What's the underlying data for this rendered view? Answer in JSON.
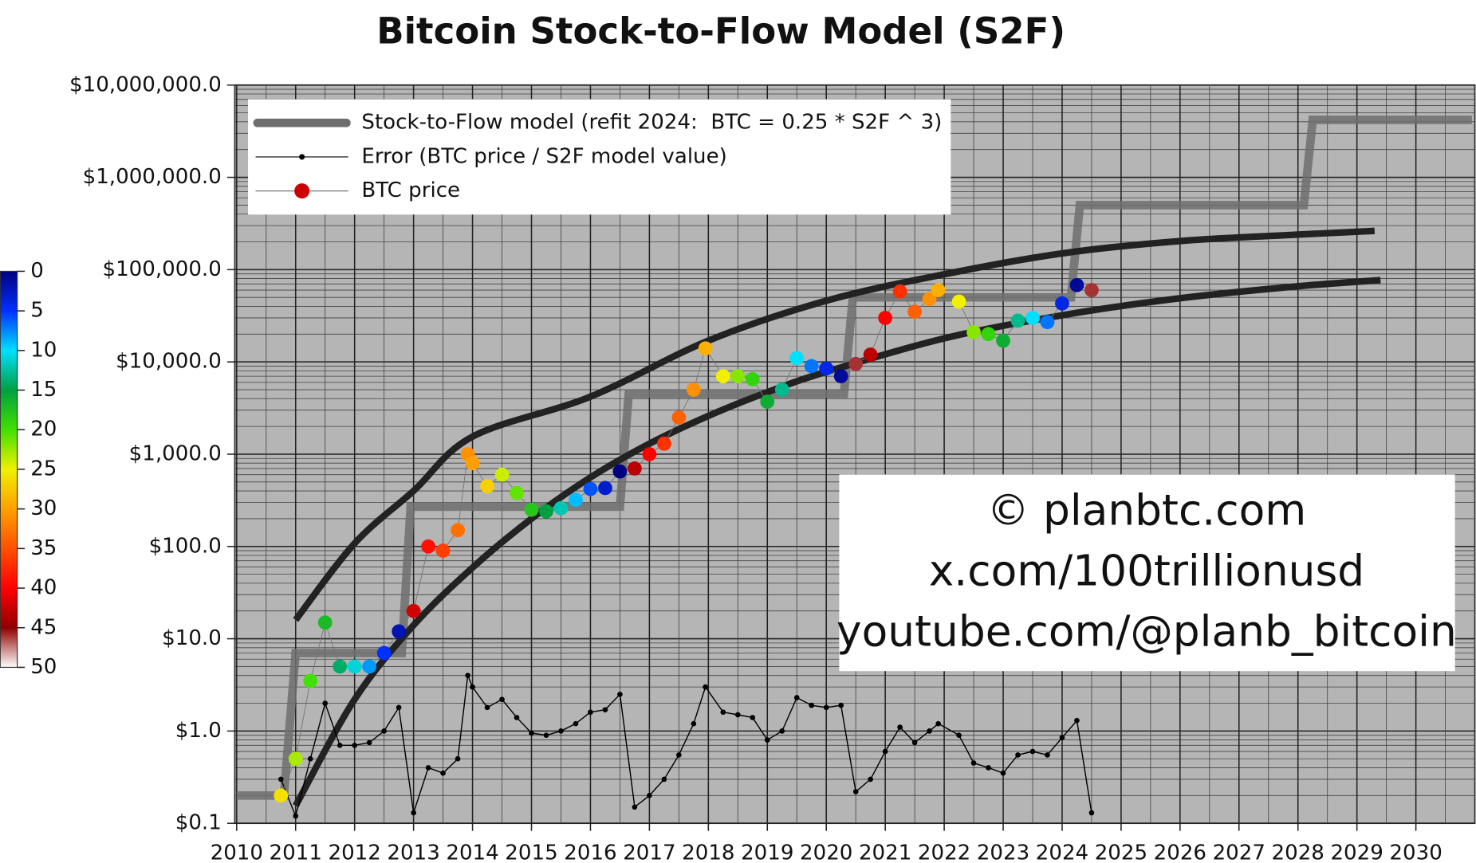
{
  "chart_data": {
    "type": "scatter",
    "title": "Bitcoin Stock-to-Flow Model (S2F)",
    "log_y": true,
    "grid": true,
    "legend": "upper left",
    "xlim": [
      2010,
      2031
    ],
    "xticks": [
      2010,
      2011,
      2012,
      2013,
      2014,
      2015,
      2016,
      2017,
      2018,
      2019,
      2020,
      2021,
      2022,
      2023,
      2024,
      2025,
      2026,
      2027,
      2028,
      2029,
      2030
    ],
    "ylim": [
      0.1,
      10000000
    ],
    "yticks": [
      {
        "value": 0.1,
        "label": "$0.1"
      },
      {
        "value": 1,
        "label": "$1.0"
      },
      {
        "value": 10,
        "label": "$10.0"
      },
      {
        "value": 100,
        "label": "$100.0"
      },
      {
        "value": 1000,
        "label": "$1,000.0"
      },
      {
        "value": 10000,
        "label": "$10,000.0"
      },
      {
        "value": 100000,
        "label": "$100,000.0"
      },
      {
        "value": 1000000,
        "label": "$1,000,000.0"
      },
      {
        "value": 10000000,
        "label": "$10,000,000.0"
      }
    ],
    "x": [
      2010.75,
      2011.0,
      2011.25,
      2011.5,
      2011.75,
      2012.0,
      2012.25,
      2012.5,
      2012.75,
      2013.0,
      2013.25,
      2013.5,
      2013.75,
      2013.92,
      2014.0,
      2014.25,
      2014.5,
      2014.75,
      2015.0,
      2015.25,
      2015.5,
      2015.75,
      2016.0,
      2016.25,
      2016.5,
      2016.75,
      2017.0,
      2017.25,
      2017.5,
      2017.75,
      2017.95,
      2018.25,
      2018.5,
      2018.75,
      2019.0,
      2019.25,
      2019.5,
      2019.75,
      2020.0,
      2020.25,
      2020.5,
      2020.75,
      2021.0,
      2021.25,
      2021.5,
      2021.75,
      2021.9,
      2022.25,
      2022.5,
      2022.75,
      2023.0,
      2023.25,
      2023.5,
      2023.75,
      2024.0,
      2024.25,
      2024.5
    ],
    "series": [
      {
        "name": "Stock-to-Flow model (refit 2024:  BTC = 0.25 * S2F ^ 3)",
        "color": "#6e6e6e",
        "x": [
          2010,
          2010.8,
          2011.0,
          2012.8,
          2012.95,
          2016.5,
          2016.65,
          2020.3,
          2020.45,
          2024.15,
          2024.3,
          2028.1,
          2028.25,
          2030.95
        ],
        "values": [
          0.2,
          0.2,
          7,
          7,
          270,
          270,
          4500,
          4500,
          50000,
          50000,
          500000,
          500000,
          4200000,
          4200000
        ]
      },
      {
        "name": "Error (BTC price / S2F model value)",
        "color": "#000000",
        "values": [
          0.3,
          0.12,
          0.5,
          2.0,
          0.7,
          0.7,
          0.75,
          1.0,
          1.8,
          0.13,
          0.4,
          0.35,
          0.5,
          4.0,
          3.0,
          1.8,
          2.2,
          1.4,
          0.95,
          0.9,
          1.0,
          1.2,
          1.6,
          1.7,
          2.5,
          0.15,
          0.2,
          0.3,
          0.55,
          1.2,
          3.0,
          1.6,
          1.5,
          1.4,
          0.8,
          1.0,
          2.3,
          1.9,
          1.8,
          1.9,
          0.22,
          0.3,
          0.6,
          1.1,
          0.75,
          1.0,
          1.2,
          0.9,
          0.45,
          0.4,
          0.35,
          0.55,
          0.6,
          0.55,
          0.85,
          1.3,
          0.13
        ]
      },
      {
        "name": "BTC price",
        "color": "#cc0000",
        "values": [
          0.2,
          0.5,
          3.5,
          15,
          5,
          5,
          5,
          7,
          12,
          20,
          100,
          90,
          150,
          1000,
          800,
          450,
          600,
          380,
          250,
          240,
          260,
          320,
          420,
          430,
          650,
          700,
          1000,
          1300,
          2500,
          5000,
          14000,
          7000,
          7000,
          6500,
          3700,
          5000,
          11000,
          9000,
          8500,
          7000,
          9500,
          12000,
          30000,
          58000,
          35000,
          48000,
          60000,
          45000,
          21000,
          20000,
          17000,
          28000,
          30000,
          27000,
          43000,
          68000,
          60000
        ],
        "color_values": [
          26,
          23,
          20,
          17,
          14,
          11,
          8,
          5,
          2,
          42,
          39,
          36,
          33,
          31,
          30,
          27,
          24,
          21,
          18,
          15,
          12,
          9,
          6,
          3,
          0,
          43,
          40,
          37,
          34,
          31,
          29,
          25,
          22,
          19,
          16,
          13,
          10,
          7,
          4,
          1,
          46,
          43,
          40,
          37,
          34,
          31,
          29,
          25,
          22,
          19,
          16,
          13,
          10,
          7,
          4,
          1,
          46
        ]
      }
    ],
    "bands": [
      {
        "color": "#222222",
        "x": [
          2011.0,
          2012,
          2013,
          2014,
          2016,
          2018,
          2020,
          2022,
          2024,
          2026,
          2028,
          2029.3
        ],
        "values": [
          16,
          108,
          400,
          1550,
          4200,
          17000,
          46000,
          89000,
          150000,
          204000,
          240000,
          263000
        ]
      },
      {
        "color": "#222222",
        "x": [
          2011.0,
          2012,
          2013,
          2014,
          2015,
          2016,
          2017,
          2018,
          2019,
          2020,
          2022,
          2024,
          2026,
          2028,
          2029.4
        ],
        "values": [
          0.155,
          2.2,
          14,
          59,
          200,
          560,
          1300,
          2600,
          4700,
          7800,
          18000,
          32000,
          49000,
          66000,
          77000
        ]
      }
    ],
    "colorbar": {
      "lim": [
        0,
        50
      ],
      "ticks": [
        0,
        5,
        10,
        15,
        20,
        25,
        30,
        35,
        40,
        45,
        50
      ],
      "colormap": [
        "#000080",
        "#0030ff",
        "#00e0ff",
        "#00a040",
        "#40e000",
        "#f0f000",
        "#ffa000",
        "#ff5000",
        "#ff0000",
        "#900000",
        "#ffffff"
      ]
    },
    "annotation_lines": [
      "© planbtc.com",
      "x.com/100trillionusd",
      "youtube.com/@planb_bitcoin"
    ]
  }
}
